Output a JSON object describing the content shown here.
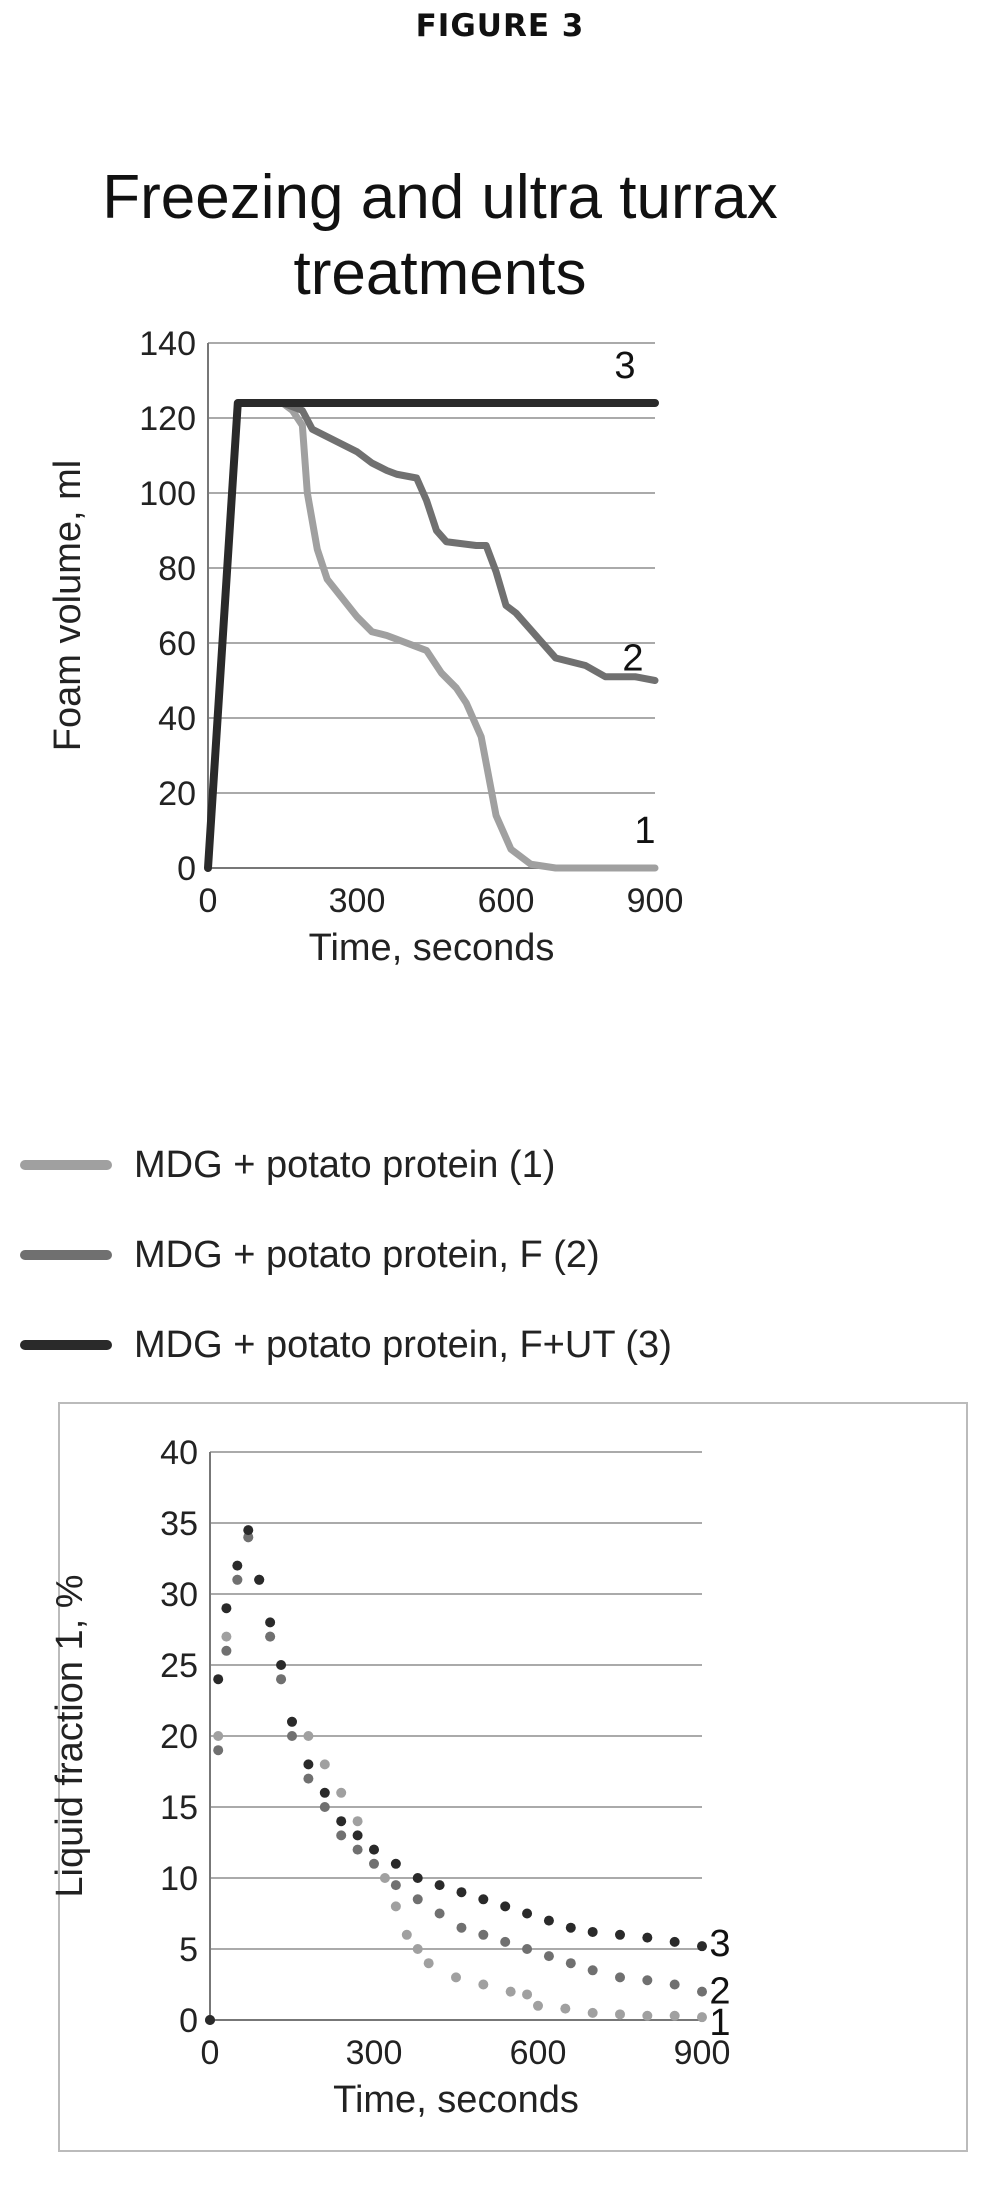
{
  "figure_label": "FIGURE 3",
  "colors": {
    "series1": "#a0a0a0",
    "series2": "#707070",
    "series3": "#2a2a2a",
    "grid": "#aaaaaa"
  },
  "chart_data": [
    {
      "type": "line",
      "title": "Freezing and ultra turrax treatments",
      "xlabel": "Time, seconds",
      "ylabel": "Foam volume, ml",
      "xlim": [
        0,
        900
      ],
      "ylim": [
        0,
        140
      ],
      "xticks": [
        "0",
        "300",
        "600",
        "900"
      ],
      "yticks": [
        "0",
        "20",
        "40",
        "60",
        "80",
        "100",
        "120",
        "140"
      ],
      "grid": true,
      "series": [
        {
          "name": "MDG + potato protein (1)",
          "label": "1",
          "x": [
            0,
            60,
            150,
            170,
            190,
            200,
            220,
            240,
            270,
            300,
            330,
            360,
            400,
            440,
            470,
            500,
            520,
            550,
            580,
            610,
            650,
            700,
            900
          ],
          "y": [
            0,
            124,
            124,
            122,
            118,
            100,
            85,
            77,
            72,
            67,
            63,
            62,
            60,
            58,
            52,
            48,
            44,
            35,
            14,
            5,
            1,
            0,
            0
          ]
        },
        {
          "name": "MDG + potato protein, F (2)",
          "label": "2",
          "x": [
            0,
            60,
            150,
            190,
            210,
            240,
            270,
            300,
            330,
            360,
            380,
            420,
            440,
            460,
            480,
            540,
            560,
            580,
            600,
            620,
            660,
            700,
            760,
            800,
            860,
            900
          ],
          "y": [
            0,
            124,
            124,
            122,
            117,
            115,
            113,
            111,
            108,
            106,
            105,
            104,
            98,
            90,
            87,
            86,
            86,
            79,
            70,
            68,
            62,
            56,
            54,
            51,
            51,
            50
          ]
        },
        {
          "name": "MDG + potato protein, F+UT (3)",
          "label": "3",
          "x": [
            0,
            60,
            900
          ],
          "y": [
            0,
            124,
            124
          ]
        }
      ],
      "legend_position": "bottom"
    },
    {
      "type": "scatter",
      "title": "",
      "xlabel": "Time, seconds",
      "ylabel": "Liquid fraction 1, %",
      "xlim": [
        0,
        900
      ],
      "ylim": [
        0,
        40
      ],
      "xticks": [
        "0",
        "300",
        "600",
        "900"
      ],
      "yticks": [
        "0",
        "5",
        "10",
        "15",
        "20",
        "25",
        "30",
        "35",
        "40"
      ],
      "grid": true,
      "series": [
        {
          "name": "MDG + potato protein (1)",
          "label": "1",
          "x": [
            0,
            15,
            30,
            50,
            70,
            90,
            110,
            130,
            150,
            180,
            210,
            240,
            270,
            300,
            320,
            340,
            360,
            380,
            400,
            450,
            500,
            550,
            580,
            600,
            650,
            700,
            750,
            800,
            850,
            900
          ],
          "y": [
            0,
            20,
            27,
            31,
            34,
            31,
            27,
            24,
            21,
            20,
            18,
            16,
            14,
            12,
            10,
            8,
            6,
            5,
            4,
            3,
            2.5,
            2,
            1.8,
            1,
            0.8,
            0.5,
            0.4,
            0.3,
            0.3,
            0.2
          ]
        },
        {
          "name": "MDG + potato protein, F (2)",
          "label": "2",
          "x": [
            0,
            15,
            30,
            50,
            70,
            90,
            110,
            130,
            150,
            180,
            210,
            240,
            270,
            300,
            340,
            380,
            420,
            460,
            500,
            540,
            580,
            620,
            660,
            700,
            750,
            800,
            850,
            900
          ],
          "y": [
            0,
            19,
            26,
            31,
            34,
            31,
            27,
            24,
            20,
            17,
            15,
            13,
            12,
            11,
            9.5,
            8.5,
            7.5,
            6.5,
            6,
            5.5,
            5,
            4.5,
            4,
            3.5,
            3,
            2.8,
            2.5,
            2
          ]
        },
        {
          "name": "MDG + potato protein, F+UT (3)",
          "label": "3",
          "x": [
            0,
            15,
            30,
            50,
            70,
            90,
            110,
            130,
            150,
            180,
            210,
            240,
            270,
            300,
            340,
            380,
            420,
            460,
            500,
            540,
            580,
            620,
            660,
            700,
            750,
            800,
            850,
            900
          ],
          "y": [
            0,
            24,
            29,
            32,
            34.5,
            31,
            28,
            25,
            21,
            18,
            16,
            14,
            13,
            12,
            11,
            10,
            9.5,
            9,
            8.5,
            8,
            7.5,
            7,
            6.5,
            6.2,
            6,
            5.8,
            5.5,
            5.2
          ]
        }
      ]
    }
  ]
}
